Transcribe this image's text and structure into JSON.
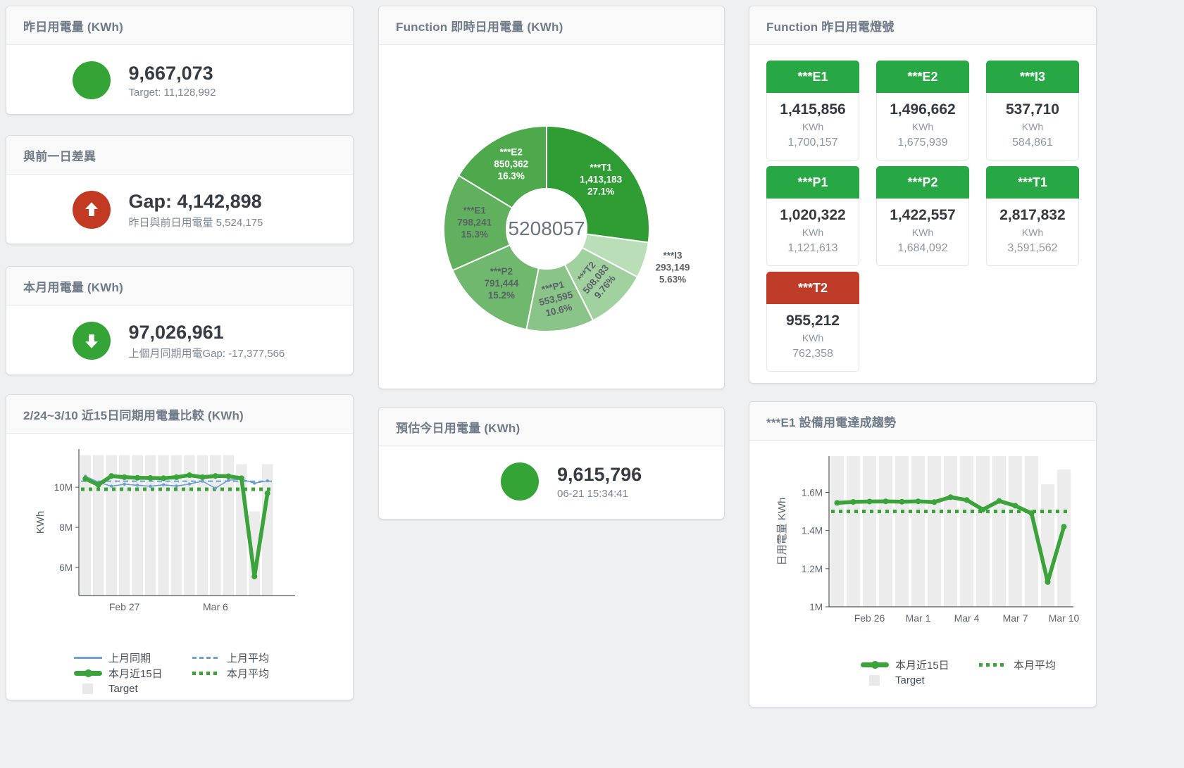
{
  "cards": {
    "yesterday": {
      "title": "昨日用電量 (KWh)",
      "value": "9,667,073",
      "sub": "Target: 11,128,992",
      "status_color": "#35a437"
    },
    "diff": {
      "title": "與前一日差異",
      "value": "Gap: 4,142,898",
      "sub": "昨日與前日用電量 5,524,175",
      "status_color": "#c23a22"
    },
    "month": {
      "title": "本月用電量 (KWh)",
      "value": "97,026,961",
      "sub": "上個月同期用電Gap: -17,377,566",
      "status_color": "#35a437"
    },
    "estimate": {
      "title": "預估今日用電量 (KWh)",
      "value": "9,615,796",
      "sub": "06-21 15:34:41",
      "status_color": "#35a437"
    }
  },
  "donut_card": {
    "title": "Function 即時日用電量 (KWh)"
  },
  "lights_card": {
    "title": "Function 昨日用電燈號",
    "unit": "KWh",
    "colors": {
      "green": "#28a745",
      "red": "#bf3d28"
    },
    "tiles": [
      {
        "name": "***E1",
        "value": "1,415,856",
        "target": "1,700,157",
        "status": "green"
      },
      {
        "name": "***E2",
        "value": "1,496,662",
        "target": "1,675,939",
        "status": "green"
      },
      {
        "name": "***I3",
        "value": "537,710",
        "target": "584,861",
        "status": "green"
      },
      {
        "name": "***P1",
        "value": "1,020,322",
        "target": "1,121,613",
        "status": "green"
      },
      {
        "name": "***P2",
        "value": "1,422,557",
        "target": "1,684,092",
        "status": "green"
      },
      {
        "name": "***T1",
        "value": "2,817,832",
        "target": "3,591,562",
        "status": "green"
      },
      {
        "name": "***T2",
        "value": "955,212",
        "target": "762,358",
        "status": "red"
      }
    ]
  },
  "compare_card": {
    "title": "2/24~3/10 近15日同期用電量比較 (KWh)"
  },
  "trend_card": {
    "title": "***E1 設備用電達成趨勢"
  },
  "chart_data": [
    {
      "type": "pie",
      "title": "Function 即時日用電量 (KWh)",
      "center_label": "5208057",
      "slices": [
        {
          "name": "***T1",
          "value": 1413183,
          "value_label": "1,413,183",
          "percent": 27.1,
          "percent_label": "27.1%",
          "color": "#2f9d33",
          "label_color": "#ffffff"
        },
        {
          "name": "***I3",
          "value": 293149,
          "value_label": "293,149",
          "percent": 5.63,
          "percent_label": "5.63%",
          "color": "#badfb8",
          "label_color": "#5a6268",
          "label_outside": true
        },
        {
          "name": "***T2",
          "value": 508083,
          "value_label": "508,083",
          "percent": 9.76,
          "percent_label": "9.76%",
          "color": "#a2d1a0",
          "label_color": "#5a6268",
          "label_rotate": -50
        },
        {
          "name": "***P1",
          "value": 553595,
          "value_label": "553,595",
          "percent": 10.6,
          "percent_label": "10.6%",
          "color": "#8ac488",
          "label_color": "#5a6268",
          "label_rotate": -14
        },
        {
          "name": "***P2",
          "value": 791444,
          "value_label": "791,444",
          "percent": 15.2,
          "percent_label": "15.2%",
          "color": "#6fb86d",
          "label_color": "#5a6268"
        },
        {
          "name": "***E1",
          "value": 798241,
          "value_label": "798,241",
          "percent": 15.3,
          "percent_label": "15.3%",
          "color": "#60b05e",
          "label_color": "#5a6268"
        },
        {
          "name": "***E2",
          "value": 850362,
          "value_label": "850,362",
          "percent": 16.3,
          "percent_label": "16.3%",
          "color": "#4ea84c",
          "label_color": "#ffffff"
        }
      ]
    },
    {
      "type": "line",
      "title": "2/24~3/10 近15日同期用電量比較 (KWh)",
      "ylabel": "KWh",
      "ylim": [
        4600000,
        11900000
      ],
      "yticks": [
        {
          "v": 6000000,
          "label": "6M"
        },
        {
          "v": 8000000,
          "label": "8M"
        },
        {
          "v": 10000000,
          "label": "10M"
        }
      ],
      "categories": [
        "Feb 24",
        "Feb 25",
        "Feb 26",
        "Feb 27",
        "Feb 28",
        "Mar 1",
        "Mar 2",
        "Mar 3",
        "Mar 4",
        "Mar 5",
        "Mar 6",
        "Mar 7",
        "Mar 8",
        "Mar 9",
        "Mar 10"
      ],
      "xticks": [
        {
          "i": 3,
          "label": "Feb 27"
        },
        {
          "i": 10,
          "label": "Mar 6"
        }
      ],
      "target": {
        "name": "Target",
        "color": "#ececec",
        "values": [
          11600000,
          11600000,
          11600000,
          11600000,
          11600000,
          11600000,
          11600000,
          11600000,
          11600000,
          11600000,
          11600000,
          11600000,
          11150000,
          8800000,
          11150000
        ]
      },
      "series": [
        {
          "name": "上月同期",
          "color": "#6ba2d0",
          "width": 1.6,
          "marker": 2.2,
          "values": [
            10550000,
            10250000,
            10050000,
            10150000,
            10100000,
            10050000,
            10120000,
            10060000,
            10160000,
            10300000,
            9950000,
            10350000,
            10400000,
            10200000,
            10320000
          ]
        },
        {
          "name": "本月近15日",
          "color": "#3aa339",
          "width": 5.5,
          "marker": 4,
          "values": [
            10420000,
            10120000,
            10560000,
            10500000,
            10470000,
            10460000,
            10450000,
            10500000,
            10600000,
            10500000,
            10560000,
            10550000,
            10450000,
            5550000,
            9700000
          ]
        }
      ],
      "avg_lines": [
        {
          "name": "上月平均",
          "color": "#6ba2d0",
          "style": "dashed",
          "value": 10300000
        },
        {
          "name": "本月平均",
          "color": "#3aa339",
          "style": "dotted",
          "value": 9900000
        }
      ],
      "legend_rows": [
        [
          {
            "label": "上月同期",
            "style": "solid-thin",
            "color": "#6ba2d0"
          },
          {
            "label": "上月平均",
            "style": "dashed",
            "color": "#6ba2d0"
          }
        ],
        [
          {
            "label": "本月近15日",
            "style": "solid-thick",
            "color": "#3aa339"
          },
          {
            "label": "本月平均",
            "style": "dotted",
            "color": "#3aa339"
          }
        ],
        [
          {
            "label": "Target",
            "style": "square",
            "color": "#e9e9e9"
          }
        ]
      ]
    },
    {
      "type": "line",
      "title": "***E1 設備用電達成趨勢",
      "ylabel": "日用電量 KWh",
      "ylim": [
        1000000,
        1790000
      ],
      "yticks": [
        {
          "v": 1000000,
          "label": "1M"
        },
        {
          "v": 1200000,
          "label": "1.2M"
        },
        {
          "v": 1400000,
          "label": "1.4M"
        },
        {
          "v": 1600000,
          "label": "1.6M"
        }
      ],
      "categories": [
        "Feb 24",
        "Feb 25",
        "Feb 26",
        "Feb 27",
        "Feb 28",
        "Mar 1",
        "Mar 2",
        "Mar 3",
        "Mar 4",
        "Mar 5",
        "Mar 6",
        "Mar 7",
        "Mar 8",
        "Mar 9",
        "Mar 10"
      ],
      "xticks": [
        {
          "i": 2,
          "label": "Feb 26"
        },
        {
          "i": 5,
          "label": "Mar 1"
        },
        {
          "i": 8,
          "label": "Mar 4"
        },
        {
          "i": 11,
          "label": "Mar 7"
        },
        {
          "i": 14,
          "label": "Mar 10"
        }
      ],
      "target": {
        "name": "Target",
        "color": "#ececec",
        "values": [
          1790000,
          1790000,
          1790000,
          1790000,
          1790000,
          1790000,
          1790000,
          1790000,
          1790000,
          1790000,
          1790000,
          1790000,
          1790000,
          1643000,
          1720000
        ]
      },
      "series": [
        {
          "name": "本月近15日",
          "color": "#3aa339",
          "width": 5.5,
          "marker": 4,
          "values": [
            1545000,
            1550000,
            1552000,
            1553000,
            1551000,
            1553000,
            1549000,
            1575000,
            1560000,
            1510000,
            1555000,
            1530000,
            1490000,
            1130000,
            1420000
          ]
        }
      ],
      "avg_lines": [
        {
          "name": "本月平均",
          "color": "#3aa339",
          "style": "dotted",
          "value": 1500000
        }
      ],
      "legend_rows": [
        [
          {
            "label": "本月近15日",
            "style": "solid-thick",
            "color": "#3aa339"
          },
          {
            "label": "本月平均",
            "style": "dotted",
            "color": "#3aa339"
          }
        ],
        [
          {
            "label": "Target",
            "style": "square",
            "color": "#e9e9e9"
          }
        ]
      ]
    }
  ]
}
